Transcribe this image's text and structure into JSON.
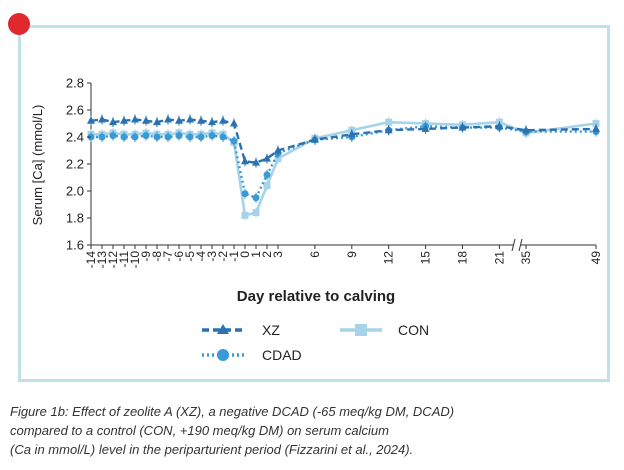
{
  "chart_data": {
    "type": "line",
    "xlabel": "Day relative to calving",
    "ylabel": "Serum [Ca] (mmol/L)",
    "ylim": [
      1.6,
      2.8
    ],
    "yticks": [
      "2.8",
      "2.6",
      "2.4",
      "2.2",
      "2.0",
      "1.8",
      "1.6"
    ],
    "ytick_values": [
      2.8,
      2.6,
      2.4,
      2.2,
      2.0,
      1.8,
      1.6
    ],
    "xtick_labels": [
      "-14",
      "-13",
      "-12",
      "-11",
      "-10",
      "-9",
      "-8",
      "-7",
      "-6",
      "-5",
      "-4",
      "-3",
      "-2",
      "-1",
      "0",
      "1",
      "2",
      "3",
      "6",
      "9",
      "12",
      "15",
      "18",
      "21",
      "35",
      "49"
    ],
    "x_axis_break": "between 21 and 35",
    "legend": [
      {
        "name": "XZ",
        "marker": "triangle",
        "color": "#2a72b0"
      },
      {
        "name": "CDAD",
        "marker": "circle",
        "color": "#3a9ad6"
      },
      {
        "name": "CON",
        "marker": "square",
        "color": "#a7d3e8"
      }
    ],
    "series": [
      {
        "name": "XZ",
        "values": [
          2.52,
          2.53,
          2.51,
          2.52,
          2.53,
          2.52,
          2.51,
          2.53,
          2.52,
          2.53,
          2.52,
          2.51,
          2.52,
          2.5,
          2.22,
          2.21,
          2.24,
          2.3,
          2.38,
          2.42,
          2.45,
          2.46,
          2.47,
          2.48,
          2.45,
          2.46
        ]
      },
      {
        "name": "CDAD",
        "values": [
          2.4,
          2.4,
          2.41,
          2.4,
          2.4,
          2.41,
          2.4,
          2.4,
          2.41,
          2.4,
          2.4,
          2.41,
          2.4,
          2.37,
          1.98,
          1.95,
          2.12,
          2.28,
          2.38,
          2.4,
          2.45,
          2.48,
          2.47,
          2.47,
          2.44,
          2.44
        ]
      },
      {
        "name": "CON",
        "values": [
          2.42,
          2.42,
          2.43,
          2.42,
          2.42,
          2.43,
          2.42,
          2.42,
          2.43,
          2.42,
          2.42,
          2.43,
          2.42,
          2.36,
          1.82,
          1.84,
          2.04,
          2.24,
          2.39,
          2.45,
          2.51,
          2.5,
          2.49,
          2.51,
          2.43,
          2.5
        ]
      }
    ]
  },
  "caption": {
    "line1": "Figure 1b: Effect of zeolite A (XZ), a negative DCAD (-65 meq/kg DM, DCAD)",
    "line2": "compared to a control (CON, +190 meq/kg DM) on serum calcium",
    "line3": "(Ca in mmol/L) level in the periparturient period (Fizzarini et al., 2024)."
  }
}
